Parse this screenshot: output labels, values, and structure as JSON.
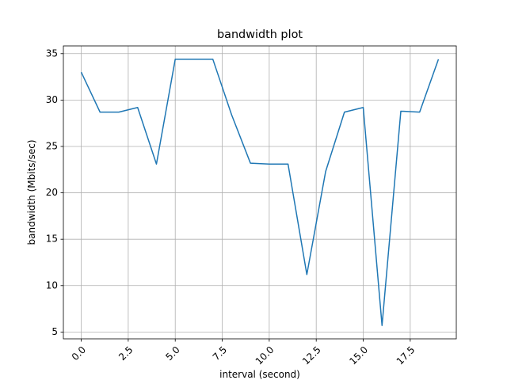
{
  "chart_data": {
    "type": "line",
    "title": "bandwidth plot",
    "x_label": "interval (second)",
    "y_label": "bandwidth (Mbits/sec)",
    "x": [
      0,
      1,
      2,
      3,
      4,
      5,
      6,
      7,
      8,
      9,
      10,
      11,
      12,
      13,
      14,
      15,
      16,
      17,
      18,
      19
    ],
    "series": [
      {
        "name": "bandwidth",
        "color": "#1f77b4",
        "values": [
          33.0,
          28.7,
          28.7,
          29.2,
          23.1,
          34.4,
          34.4,
          34.4,
          28.4,
          23.2,
          23.1,
          23.1,
          11.2,
          22.3,
          28.7,
          29.2,
          5.7,
          28.8,
          28.7,
          34.4
        ]
      }
    ],
    "xlim": [
      -0.95,
      19.95
    ],
    "xticks": [
      {
        "value": 0,
        "label": "0.0"
      },
      {
        "value": 2.5,
        "label": "2.5"
      },
      {
        "value": 5,
        "label": "5.0"
      },
      {
        "value": 7.5,
        "label": "7.5"
      },
      {
        "value": 10,
        "label": "10.0"
      },
      {
        "value": 12.5,
        "label": "12.5"
      },
      {
        "value": 15,
        "label": "15.0"
      },
      {
        "value": 17.5,
        "label": "17.5"
      }
    ],
    "ylim": [
      4.265,
      35.835
    ],
    "yticks": [
      5,
      10,
      15,
      20,
      25,
      30,
      35
    ],
    "grid": true
  }
}
